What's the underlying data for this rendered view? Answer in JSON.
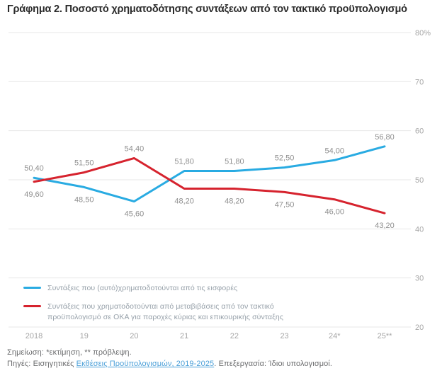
{
  "chart_data": {
    "type": "line",
    "title": "Γράφημα 2. Ποσοστό χρηματοδότησης συντάξεων από τον τακτικό προϋπολογισμό",
    "categories": [
      "2018",
      "19",
      "20",
      "21",
      "22",
      "23",
      "24*",
      "25**"
    ],
    "series": [
      {
        "id": "contributions",
        "name": "Συντάξεις που (αυτό)χρηματοδοτούνται από τις εισφορές",
        "color": "#29ABE2",
        "values": [
          50.4,
          48.5,
          45.6,
          51.8,
          51.8,
          52.5,
          54.0,
          56.8
        ],
        "labels": [
          "50,40",
          "48,50",
          "45,60",
          "51,80",
          "51,80",
          "52,50",
          "54,00",
          "56,80"
        ]
      },
      {
        "id": "state-transfers",
        "name": "Συντάξεις που χρηματοδοτούνται από μεταβιβάσεις από τον τακτικό προϋπολογισμό σε ΟΚΑ για παροχές κύριας και επικουρικής σύνταξης",
        "color": "#D6232E",
        "values": [
          49.6,
          51.5,
          54.4,
          48.2,
          48.2,
          47.5,
          46.0,
          43.2
        ],
        "labels": [
          "49,60",
          "51,50",
          "54,40",
          "48,20",
          "48,20",
          "47,50",
          "46,00",
          "43,20"
        ]
      }
    ],
    "ylim": [
      20,
      80
    ],
    "yticks": [
      80,
      70,
      60,
      50,
      40,
      30,
      20
    ],
    "ytick_labels": [
      "80%",
      "70",
      "60",
      "50",
      "40",
      "30",
      "20"
    ],
    "grid": true,
    "legend_position": "bottom-left-inside"
  },
  "legend": {
    "items": [
      {
        "text": "Συντάξεις που (αυτό)χρηματοδοτούνται από τις εισφορές",
        "color": "#29ABE2"
      },
      {
        "text": "Συντάξεις που χρηματοδοτούνται από μεταβιβάσεις από τον τακτικό\nπροϋπολογισμό σε ΟΚΑ για παροχές κύριας και επικουρικής σύνταξης",
        "color": "#D6232E"
      }
    ]
  },
  "footer": {
    "note": "Σημείωση: *εκτίμηση, ** πρόβλεψη.",
    "sources_prefix": "Πηγές: Εισηγητικές ",
    "sources_link": "Εκθέσεις Προϋπολογισμών, 2019-2025",
    "sources_suffix": ". Επεξεργασία: Ίδιοι υπολογισμοί."
  },
  "colors": {
    "blue_line": "#29ABE2",
    "red_line": "#D6232E",
    "grid": "#E7E7E7",
    "axis_text": "#A6A6A6",
    "label_text": "#8F8F8F",
    "title_text": "#2B2B2B",
    "legend_text": "#96A0A9",
    "footer_text": "#6B6C6E",
    "link": "#4A9FD8"
  }
}
